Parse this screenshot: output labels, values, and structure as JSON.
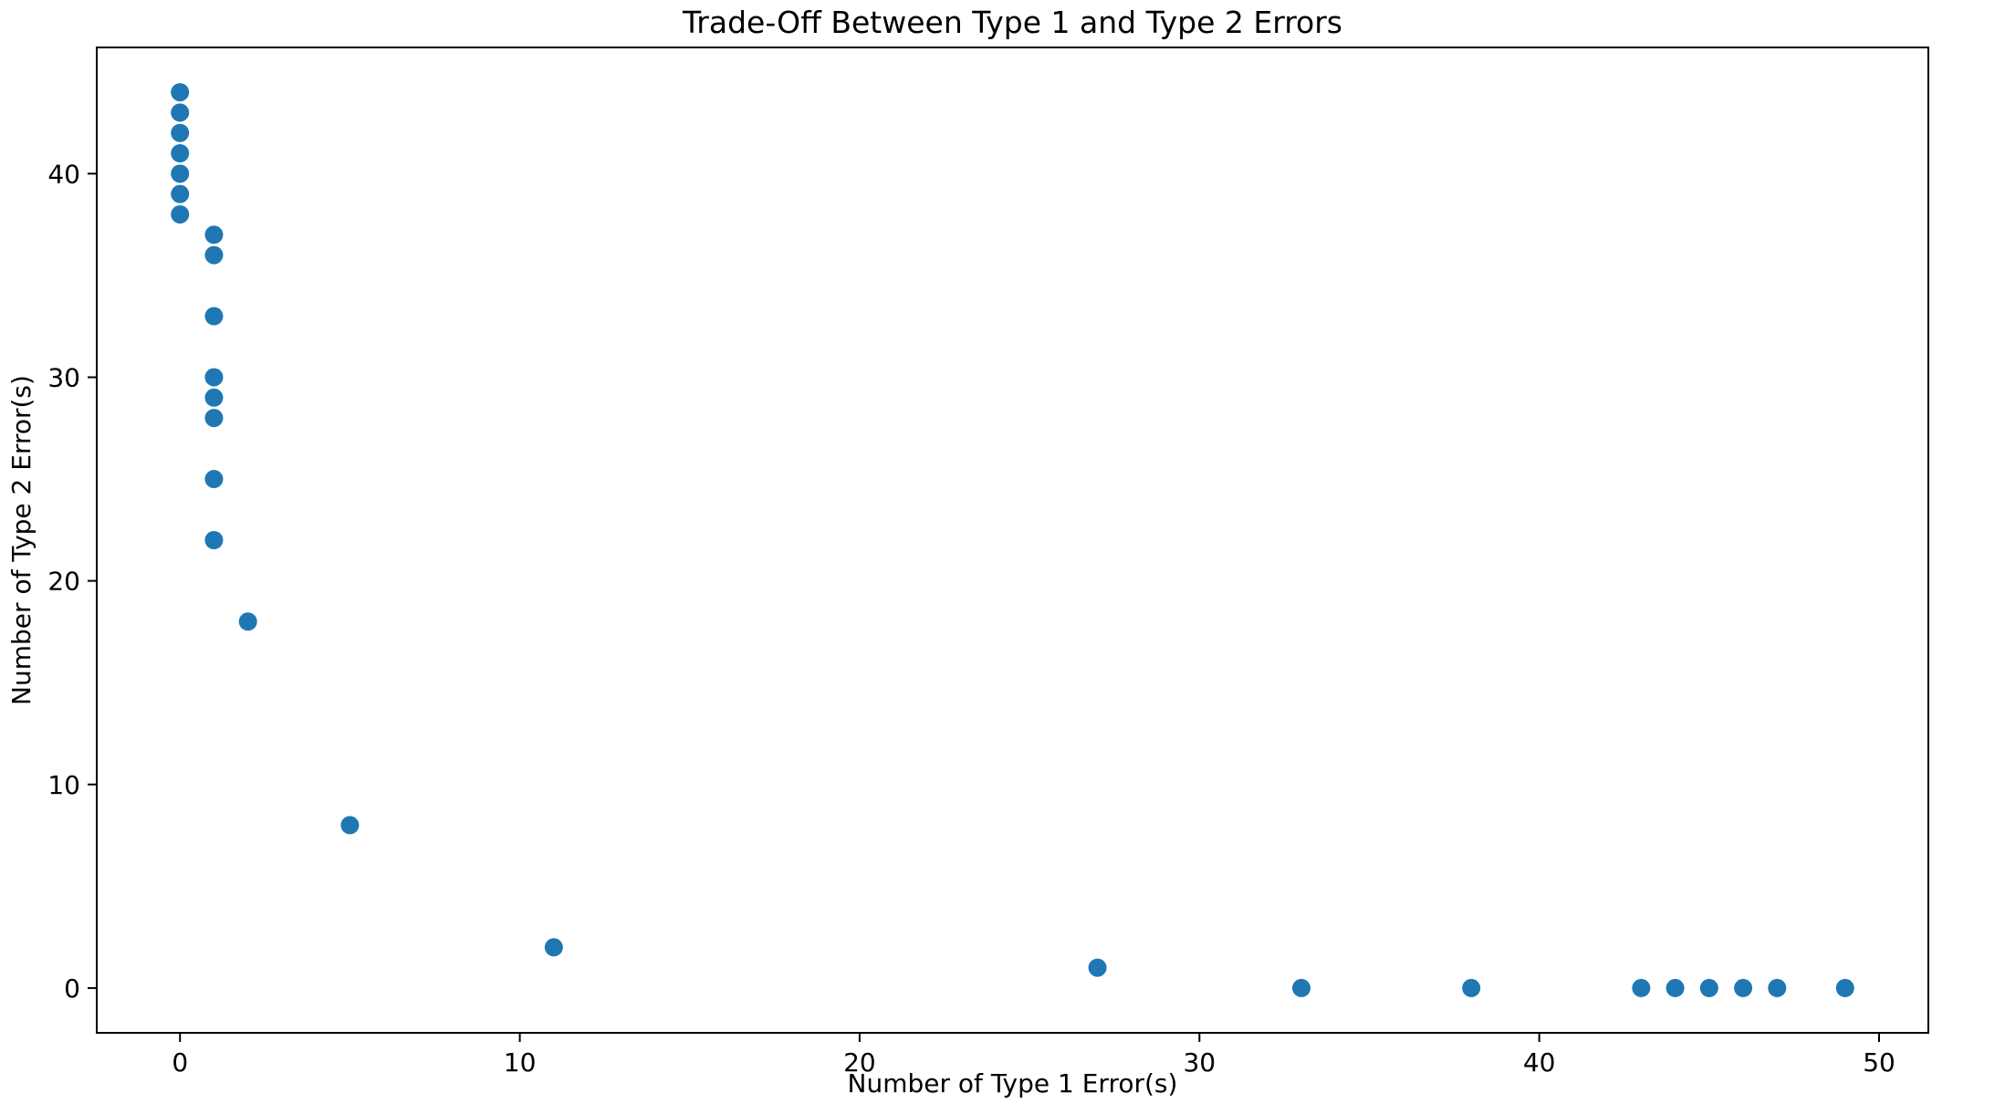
{
  "chart_data": {
    "type": "scatter",
    "title": "Trade-Off Between Type 1 and Type 2 Errors",
    "xlabel": "Number of Type 1 Error(s)",
    "ylabel": "Number of Type 2 Error(s)",
    "xlim": [
      -2.45,
      51.45
    ],
    "ylim": [
      -2.2,
      46.2
    ],
    "xticks": [
      0,
      10,
      20,
      30,
      40,
      50
    ],
    "yticks": [
      0,
      10,
      20,
      30,
      40
    ],
    "grid": false,
    "marker_color": "#1f77b4",
    "series": [
      {
        "points": [
          {
            "x": 0,
            "y": 44
          },
          {
            "x": 0,
            "y": 43
          },
          {
            "x": 0,
            "y": 42
          },
          {
            "x": 0,
            "y": 41
          },
          {
            "x": 0,
            "y": 40
          },
          {
            "x": 0,
            "y": 39
          },
          {
            "x": 0,
            "y": 38
          },
          {
            "x": 1,
            "y": 37
          },
          {
            "x": 1,
            "y": 36
          },
          {
            "x": 1,
            "y": 33
          },
          {
            "x": 1,
            "y": 30
          },
          {
            "x": 1,
            "y": 29
          },
          {
            "x": 1,
            "y": 28
          },
          {
            "x": 1,
            "y": 25
          },
          {
            "x": 1,
            "y": 22
          },
          {
            "x": 2,
            "y": 18
          },
          {
            "x": 5,
            "y": 8
          },
          {
            "x": 11,
            "y": 2
          },
          {
            "x": 27,
            "y": 1
          },
          {
            "x": 33,
            "y": 0
          },
          {
            "x": 38,
            "y": 0
          },
          {
            "x": 43,
            "y": 0
          },
          {
            "x": 44,
            "y": 0
          },
          {
            "x": 45,
            "y": 0
          },
          {
            "x": 46,
            "y": 0
          },
          {
            "x": 47,
            "y": 0
          },
          {
            "x": 49,
            "y": 0
          }
        ]
      }
    ]
  }
}
